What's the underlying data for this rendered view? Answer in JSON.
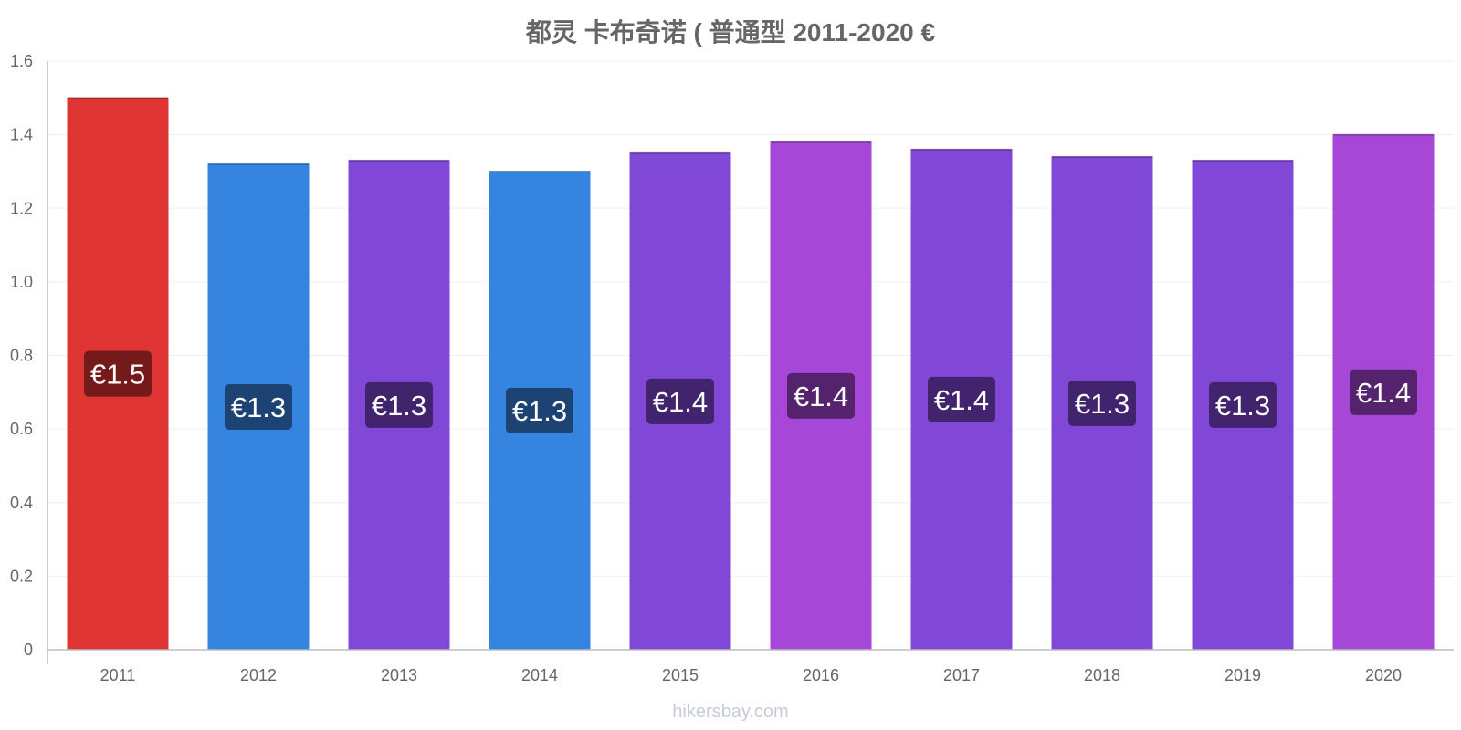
{
  "chart_data": {
    "type": "bar",
    "title": "都灵 卡布奇诺 ( 普通型 2011-2020 €",
    "categories": [
      "2011",
      "2012",
      "2013",
      "2014",
      "2015",
      "2016",
      "2017",
      "2018",
      "2019",
      "2020"
    ],
    "values": [
      1.5,
      1.32,
      1.33,
      1.3,
      1.35,
      1.38,
      1.36,
      1.34,
      1.33,
      1.4
    ],
    "value_labels": [
      "€1.5",
      "€1.3",
      "€1.3",
      "€1.3",
      "€1.4",
      "€1.4",
      "€1.4",
      "€1.3",
      "€1.3",
      "€1.4"
    ],
    "bar_colors": [
      "#e03535",
      "#3584e0",
      "#8148d8",
      "#3584e0",
      "#8148d8",
      "#a647d8",
      "#8148d8",
      "#8148d8",
      "#8148d8",
      "#a647d8"
    ],
    "label_box_colors": [
      "#741a1a",
      "#1c4373",
      "#41236e",
      "#1c4373",
      "#41236e",
      "#55236e",
      "#41236e",
      "#41236e",
      "#41236e",
      "#55236e"
    ],
    "y_ticks": [
      "0",
      "0.2",
      "0.4",
      "0.6",
      "0.8",
      "1.0",
      "1.2",
      "1.4",
      "1.6"
    ],
    "ylim": [
      0,
      1.6
    ],
    "xlabel": "",
    "ylabel": "",
    "grid": true,
    "legend": "none"
  },
  "watermark": "hikersbay.com"
}
